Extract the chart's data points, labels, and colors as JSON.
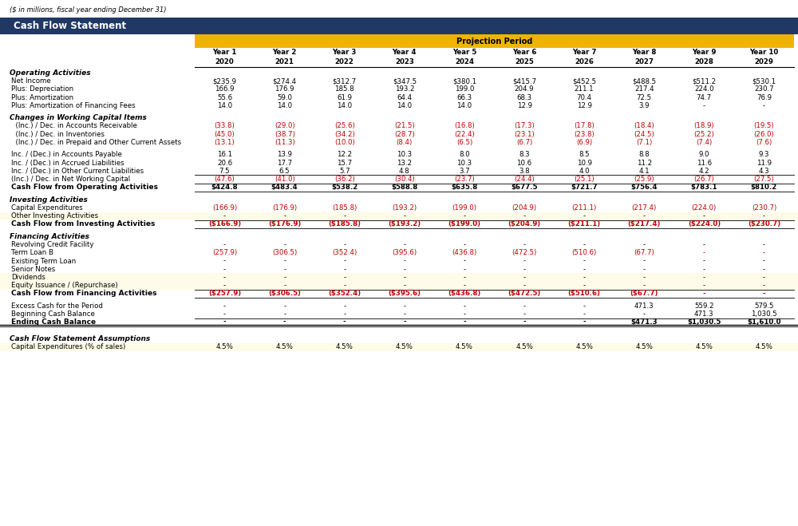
{
  "title_subtitle": "($ in millions, fiscal year ending December 31)",
  "title_main": "Cash Flow Statement",
  "projection_label": "Projection Period",
  "years_top": [
    "Year 1",
    "Year 2",
    "Year 3",
    "Year 4",
    "Year 5",
    "Year 6",
    "Year 7",
    "Year 8",
    "Year 9",
    "Year 10"
  ],
  "years_bot": [
    "2020",
    "2021",
    "2022",
    "2023",
    "2024",
    "2025",
    "2026",
    "2027",
    "2028",
    "2029"
  ],
  "rows": [
    {
      "label": "Operating Activities",
      "bold": true,
      "italic": true,
      "values": null,
      "indent": 0,
      "color": "black",
      "section_header": true
    },
    {
      "label": "Net Income",
      "bold": false,
      "italic": false,
      "values": [
        "$235.9",
        "$274.4",
        "$312.7",
        "$347.5",
        "$380.1",
        "$415.7",
        "$452.5",
        "$488.5",
        "$511.2",
        "$530.1"
      ],
      "indent": 0,
      "color": "black"
    },
    {
      "label": "Plus: Depreciation",
      "bold": false,
      "italic": false,
      "values": [
        "166.9",
        "176.9",
        "185.8",
        "193.2",
        "199.0",
        "204.9",
        "211.1",
        "217.4",
        "224.0",
        "230.7"
      ],
      "indent": 0,
      "color": "black"
    },
    {
      "label": "Plus: Amortization",
      "bold": false,
      "italic": false,
      "values": [
        "55.6",
        "59.0",
        "61.9",
        "64.4",
        "66.3",
        "68.3",
        "70.4",
        "72.5",
        "74.7",
        "76.9"
      ],
      "indent": 0,
      "color": "black"
    },
    {
      "label": "Plus: Amortization of Financing Fees",
      "bold": false,
      "italic": false,
      "values": [
        "14.0",
        "14.0",
        "14.0",
        "14.0",
        "14.0",
        "12.9",
        "12.9",
        "3.9",
        "-",
        "-"
      ],
      "indent": 0,
      "color": "black"
    },
    {
      "label": "",
      "spacer": true
    },
    {
      "label": "Changes in Working Capital Items",
      "bold": true,
      "italic": true,
      "values": null,
      "indent": 0,
      "color": "black",
      "section_header": true
    },
    {
      "label": "  (Inc.) / Dec. in Accounts Receivable",
      "bold": false,
      "italic": false,
      "values": [
        "(33.8)",
        "(29.0)",
        "(25.6)",
        "(21.5)",
        "(16.8)",
        "(17.3)",
        "(17.8)",
        "(18.4)",
        "(18.9)",
        "(19.5)"
      ],
      "indent": 0,
      "color": "red"
    },
    {
      "label": "  (Inc.) / Dec. in Inventories",
      "bold": false,
      "italic": false,
      "values": [
        "(45.0)",
        "(38.7)",
        "(34.2)",
        "(28.7)",
        "(22.4)",
        "(23.1)",
        "(23.8)",
        "(24.5)",
        "(25.2)",
        "(26.0)"
      ],
      "indent": 0,
      "color": "red"
    },
    {
      "label": "  (Inc.) / Dec. in Prepaid and Other Current Assets",
      "bold": false,
      "italic": false,
      "values": [
        "(13.1)",
        "(11.3)",
        "(10.0)",
        "(8.4)",
        "(6.5)",
        "(6.7)",
        "(6.9)",
        "(7.1)",
        "(7.4)",
        "(7.6)"
      ],
      "indent": 0,
      "color": "red"
    },
    {
      "label": "",
      "spacer": true
    },
    {
      "label": "Inc. / (Dec.) in Accounts Payable",
      "bold": false,
      "italic": false,
      "values": [
        "16.1",
        "13.9",
        "12.2",
        "10.3",
        "8.0",
        "8.3",
        "8.5",
        "8.8",
        "9.0",
        "9.3"
      ],
      "indent": 0,
      "color": "black"
    },
    {
      "label": "Inc. / (Dec.) in Accrued Liabilities",
      "bold": false,
      "italic": false,
      "values": [
        "20.6",
        "17.7",
        "15.7",
        "13.2",
        "10.3",
        "10.6",
        "10.9",
        "11.2",
        "11.6",
        "11.9"
      ],
      "indent": 0,
      "color": "black"
    },
    {
      "label": "Inc. / (Dec.) in Other Current Liabilities",
      "bold": false,
      "italic": false,
      "values": [
        "7.5",
        "6.5",
        "5.7",
        "4.8",
        "3.7",
        "3.8",
        "4.0",
        "4.1",
        "4.2",
        "4.3"
      ],
      "indent": 0,
      "color": "black"
    },
    {
      "label": "(Inc.) / Dec. in Net Working Capital",
      "bold": false,
      "italic": false,
      "values": [
        "(47.6)",
        "(41.0)",
        "(36.2)",
        "(30.4)",
        "(23.7)",
        "(24.4)",
        "(25.1)",
        "(25.9)",
        "(26.7)",
        "(27.5)"
      ],
      "indent": 0,
      "color": "red",
      "top_border": true
    },
    {
      "label": "Cash Flow from Operating Activities",
      "bold": true,
      "italic": false,
      "values": [
        "$424.8",
        "$483.4",
        "$538.2",
        "$588.8",
        "$635.8",
        "$677.5",
        "$721.7",
        "$756.4",
        "$783.1",
        "$810.2"
      ],
      "indent": 0,
      "color": "black",
      "top_border": true,
      "bottom_border": true
    },
    {
      "label": "",
      "spacer": true
    },
    {
      "label": "Investing Activities",
      "bold": true,
      "italic": true,
      "values": null,
      "indent": 0,
      "color": "black",
      "section_header": true
    },
    {
      "label": "Capital Expenditures",
      "bold": false,
      "italic": false,
      "values": [
        "(166.9)",
        "(176.9)",
        "(185.8)",
        "(193.2)",
        "(199.0)",
        "(204.9)",
        "(211.1)",
        "(217.4)",
        "(224.0)",
        "(230.7)"
      ],
      "indent": 0,
      "color": "red"
    },
    {
      "label": "Other Investing Activities",
      "bold": false,
      "italic": false,
      "values": [
        "-",
        "-",
        "-",
        "-",
        "-",
        "-",
        "-",
        "-",
        "-",
        "-"
      ],
      "indent": 0,
      "color": "black",
      "yellow_bg": true
    },
    {
      "label": "Cash Flow from Investing Activities",
      "bold": true,
      "italic": false,
      "values": [
        "($166.9)",
        "($176.9)",
        "($185.8)",
        "($193.2)",
        "($199.0)",
        "($204.9)",
        "($211.1)",
        "($217.4)",
        "($224.0)",
        "($230.7)"
      ],
      "indent": 0,
      "color": "red",
      "top_border": true,
      "bottom_border": true
    },
    {
      "label": "",
      "spacer": true
    },
    {
      "label": "Financing Activities",
      "bold": true,
      "italic": true,
      "values": null,
      "indent": 0,
      "color": "black",
      "section_header": true
    },
    {
      "label": "Revolving Credit Facility",
      "bold": false,
      "italic": false,
      "values": [
        "-",
        "-",
        "-",
        "-",
        "-",
        "-",
        "-",
        "-",
        "-",
        "-"
      ],
      "indent": 0,
      "color": "black"
    },
    {
      "label": "Term Loan B",
      "bold": false,
      "italic": false,
      "values": [
        "(257.9)",
        "(306.5)",
        "(352.4)",
        "(395.6)",
        "(436.8)",
        "(472.5)",
        "(510.6)",
        "(67.7)",
        "-",
        "-"
      ],
      "indent": 0,
      "color": "red"
    },
    {
      "label": "Existing Term Loan",
      "bold": false,
      "italic": false,
      "values": [
        "-",
        "-",
        "-",
        "-",
        "-",
        "-",
        "-",
        "-",
        "-",
        "-"
      ],
      "indent": 0,
      "color": "black"
    },
    {
      "label": "Senior Notes",
      "bold": false,
      "italic": false,
      "values": [
        "-",
        "-",
        "-",
        "-",
        "-",
        "-",
        "-",
        "-",
        "-",
        "-"
      ],
      "indent": 0,
      "color": "black"
    },
    {
      "label": "Dividends",
      "bold": false,
      "italic": false,
      "values": [
        "-",
        "-",
        "-",
        "-",
        "-",
        "-",
        "-",
        "-",
        "-",
        "-"
      ],
      "indent": 0,
      "color": "black",
      "yellow_bg": true
    },
    {
      "label": "Equity Issuance / (Repurchase)",
      "bold": false,
      "italic": false,
      "values": [
        "-",
        "-",
        "-",
        "-",
        "-",
        "-",
        "-",
        "-",
        "-",
        "-"
      ],
      "indent": 0,
      "color": "black",
      "yellow_bg": true
    },
    {
      "label": "Cash Flow from Financing Activities",
      "bold": true,
      "italic": false,
      "values": [
        "($257.9)",
        "($306.5)",
        "($352.4)",
        "($395.6)",
        "($436.8)",
        "($472.5)",
        "($510.6)",
        "($67.7)",
        "-",
        "-"
      ],
      "indent": 0,
      "color": "red",
      "top_border": true,
      "bottom_border": true
    },
    {
      "label": "",
      "spacer": true
    },
    {
      "label": "Excess Cash for the Period",
      "bold": false,
      "italic": false,
      "values": [
        "-",
        "-",
        "-",
        "-",
        "-",
        "-",
        "-",
        "471.3",
        "559.2",
        "579.5"
      ],
      "indent": 0,
      "color": "black"
    },
    {
      "label": "Beginning Cash Balance",
      "bold": false,
      "italic": false,
      "values": [
        "-",
        "-",
        "-",
        "-",
        "-",
        "-",
        "-",
        "-",
        "471.3",
        "1,030.5"
      ],
      "indent": 0,
      "color": "black"
    },
    {
      "label": "Ending Cash Balance",
      "bold": true,
      "italic": false,
      "values": [
        "-",
        "-",
        "-",
        "-",
        "-",
        "-",
        "-",
        "$471.3",
        "$1,030.5",
        "$1,610.0"
      ],
      "indent": 0,
      "color": "black",
      "top_border": true,
      "double_bottom": true
    },
    {
      "label": "",
      "spacer": true
    },
    {
      "label": "",
      "spacer": true
    },
    {
      "label": "Cash Flow Statement Assumptions",
      "bold": true,
      "italic": true,
      "values": null,
      "indent": 0,
      "color": "black",
      "section_header": true
    },
    {
      "label": "Capital Expenditures (% of sales)",
      "bold": false,
      "italic": false,
      "values": [
        "4.5%",
        "4.5%",
        "4.5%",
        "4.5%",
        "4.5%",
        "4.5%",
        "4.5%",
        "4.5%",
        "4.5%",
        "4.5%"
      ],
      "indent": 0,
      "color": "black",
      "yellow_bg": true
    }
  ],
  "colors": {
    "dark_blue": "#1F3864",
    "gold": "#F0B400",
    "light_yellow": "#FEFCE8",
    "red": "#C00000",
    "black": "#000000",
    "white": "#FFFFFF"
  }
}
